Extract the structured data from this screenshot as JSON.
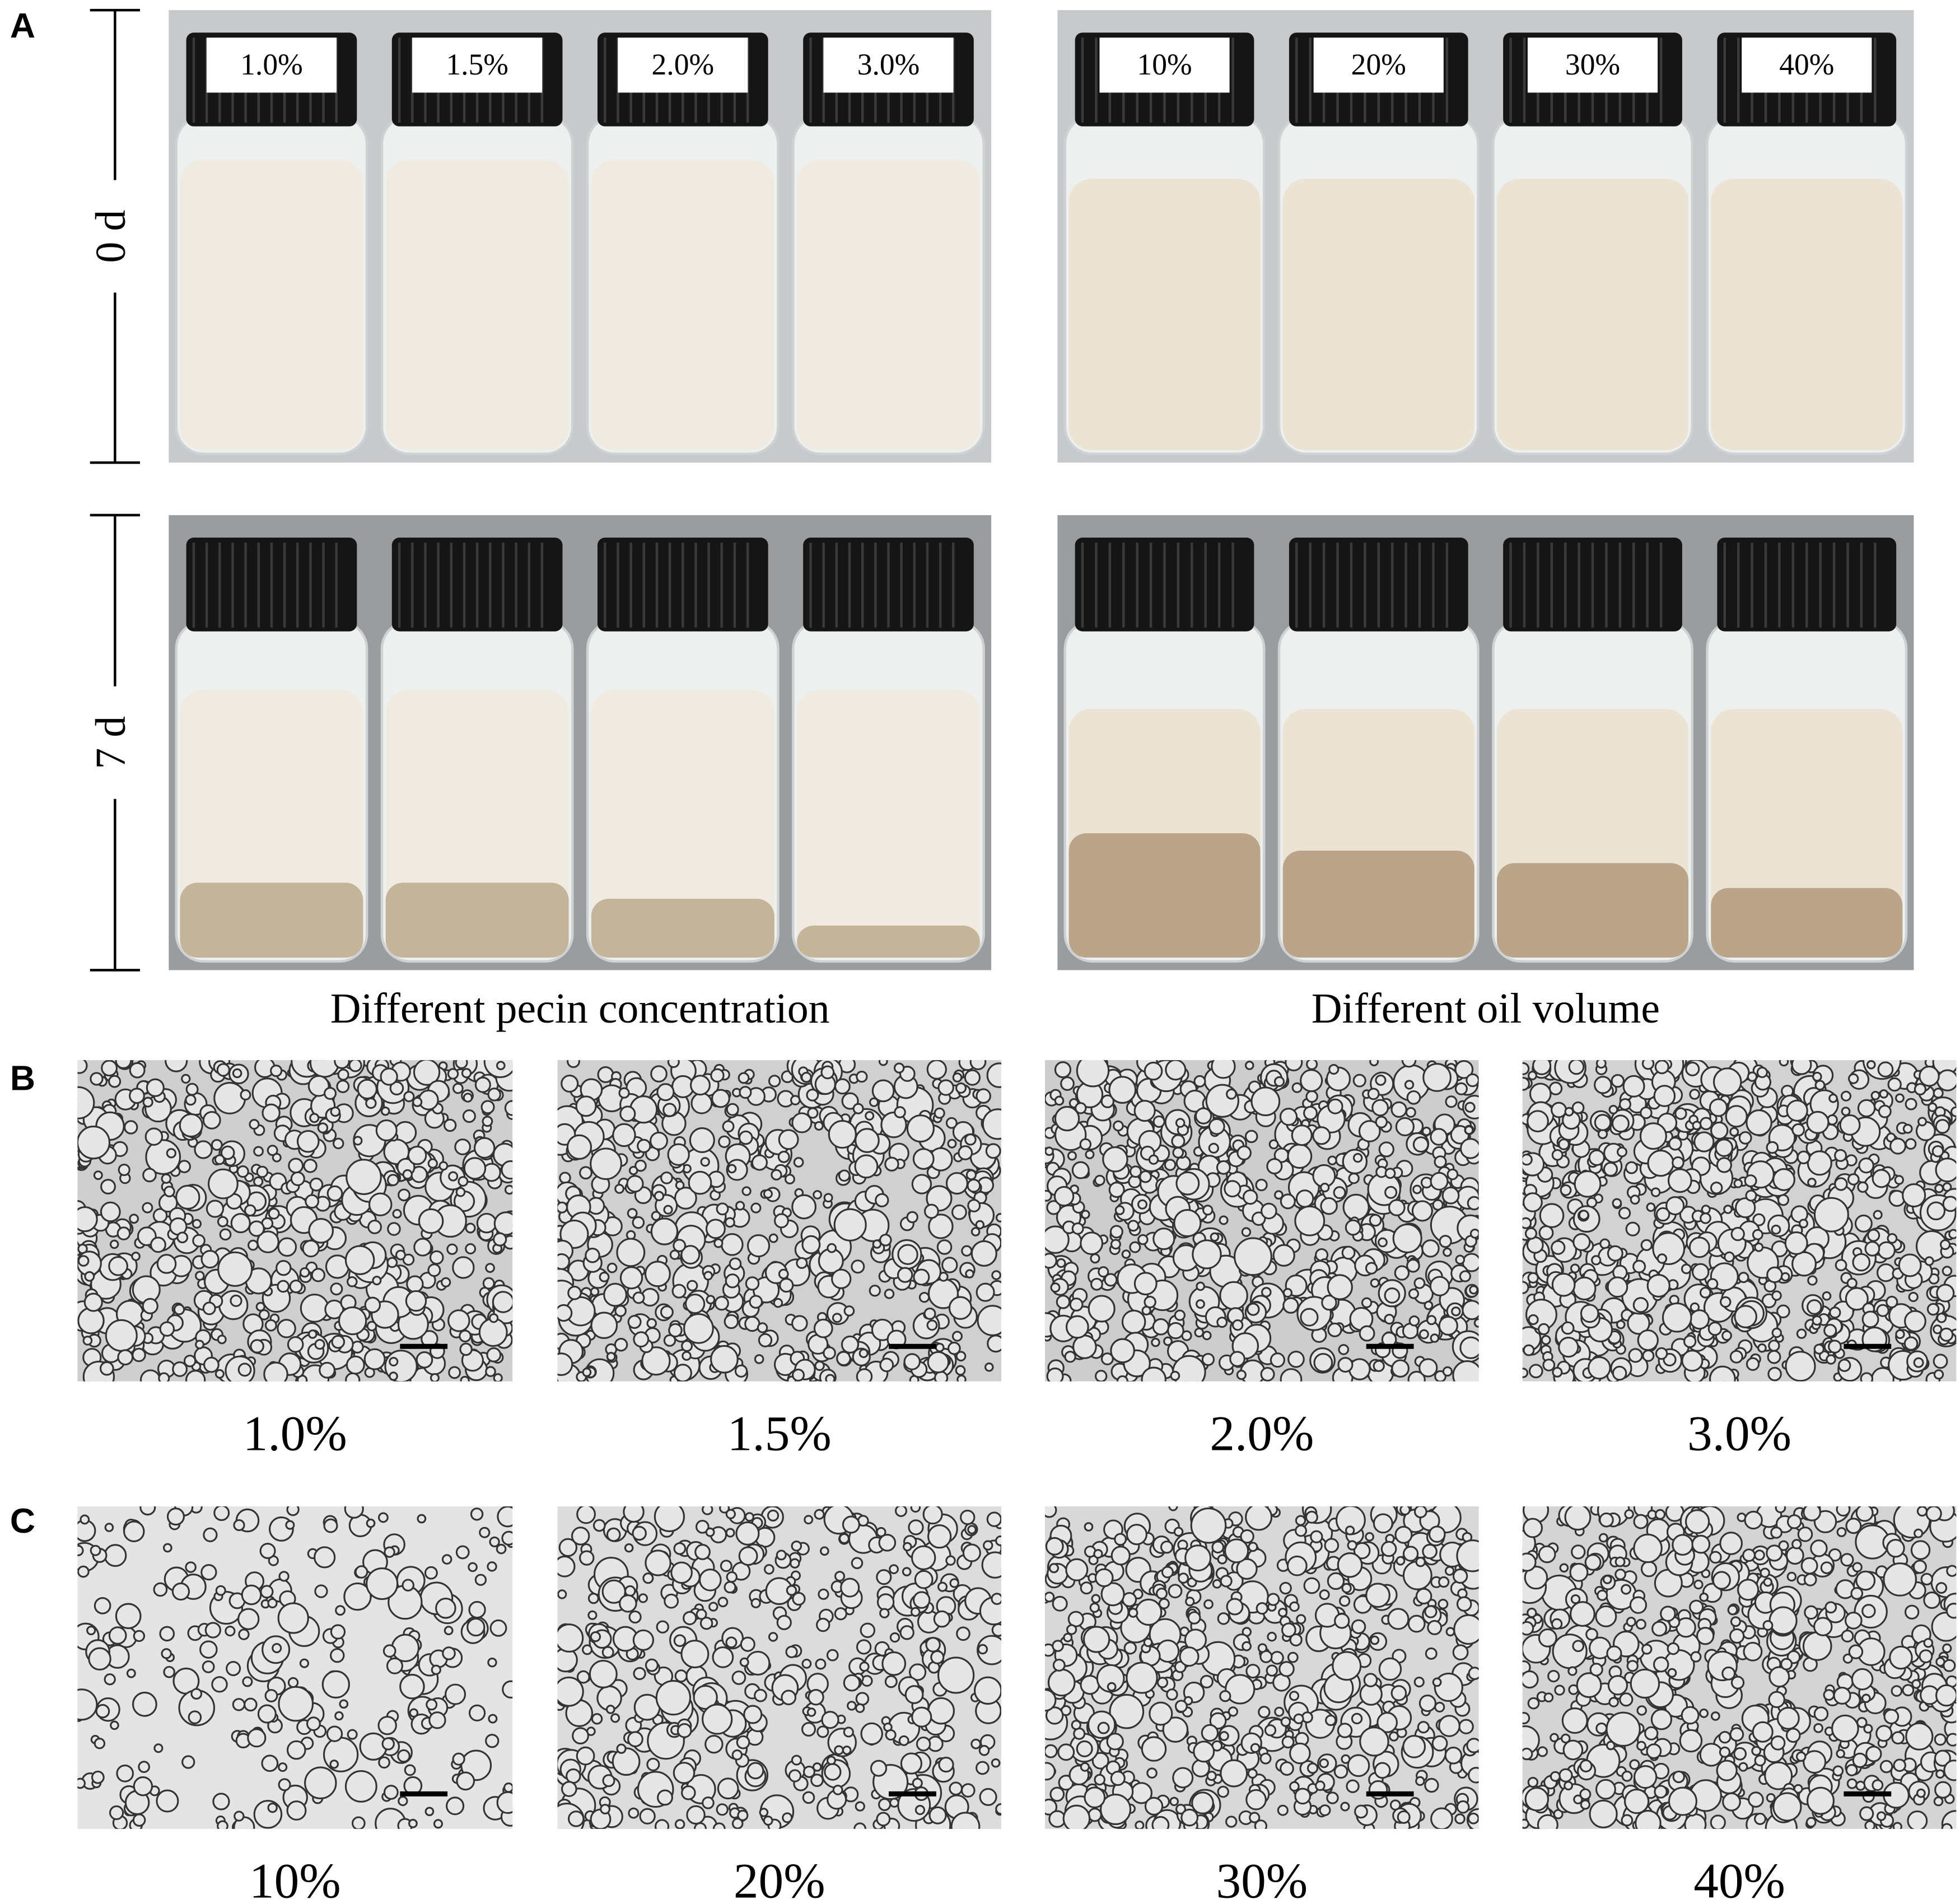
{
  "panel_a": {
    "label": "A",
    "rows": [
      "0 d",
      "7 d"
    ],
    "groups": [
      {
        "caption": "Different pecin concentration",
        "vials": [
          "1.0%",
          "1.5%",
          "2.0%",
          "3.0%"
        ]
      },
      {
        "caption": "Different oil volume",
        "vials": [
          "10%",
          "20%",
          "30%",
          "40%"
        ]
      }
    ]
  },
  "panel_b": {
    "label": "B",
    "images": [
      "1.0%",
      "1.5%",
      "2.0%",
      "3.0%"
    ]
  },
  "panel_c": {
    "label": "C",
    "images": [
      "10%",
      "20%",
      "30%",
      "40%"
    ]
  }
}
